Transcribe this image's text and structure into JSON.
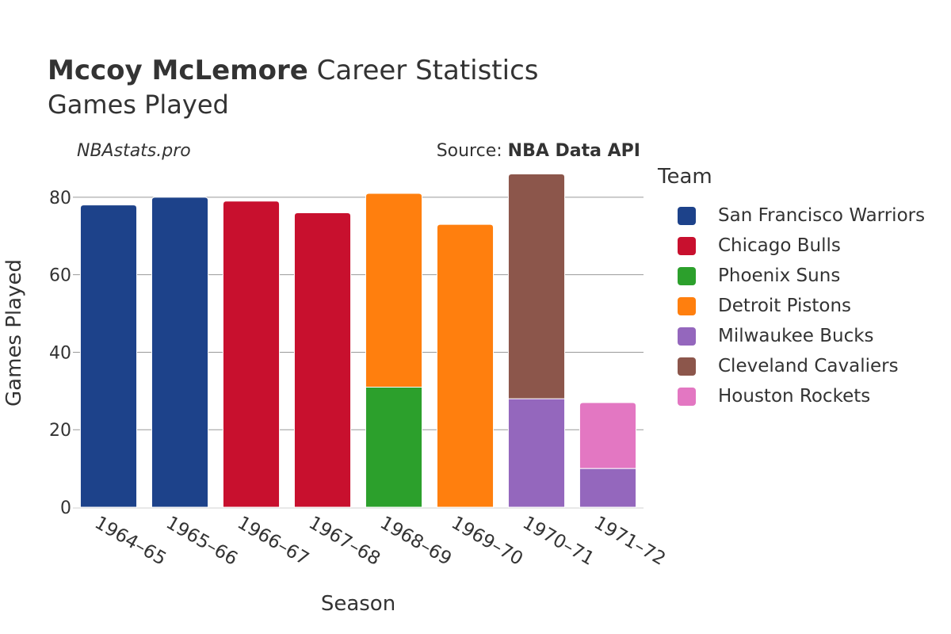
{
  "header": {
    "player_name": "Mccoy McLemore",
    "title_rest": " Career Statistics",
    "subtitle": "Games Played",
    "site": "NBAstats.pro",
    "source_prefix": "Source: ",
    "source_name": "NBA Data API"
  },
  "legend": {
    "title": "Team",
    "items": [
      {
        "label": "San Francisco Warriors",
        "color": "#1d428a"
      },
      {
        "label": "Chicago Bulls",
        "color": "#c8102e"
      },
      {
        "label": "Phoenix Suns",
        "color": "#2ca02c"
      },
      {
        "label": "Detroit Pistons",
        "color": "#ff7f0e"
      },
      {
        "label": "Milwaukee Bucks",
        "color": "#9467bd"
      },
      {
        "label": "Cleveland Cavaliers",
        "color": "#8c564b"
      },
      {
        "label": "Houston Rockets",
        "color": "#e377c2"
      }
    ]
  },
  "chart_data": {
    "type": "bar",
    "stacked": true,
    "title": "Mccoy McLemore Career Statistics",
    "subtitle": "Games Played",
    "xlabel": "Season",
    "ylabel": "Games Played",
    "ylim": [
      0,
      90
    ],
    "yticks": [
      0,
      20,
      40,
      60,
      80
    ],
    "grid": true,
    "legend_position": "right",
    "categories": [
      "1964–65",
      "1965–66",
      "1966–67",
      "1967–68",
      "1968–69",
      "1969–70",
      "1970–71",
      "1971–72"
    ],
    "series": [
      {
        "name": "San Francisco Warriors",
        "color": "#1d428a",
        "values": [
          78,
          80,
          0,
          0,
          0,
          0,
          0,
          0
        ]
      },
      {
        "name": "Chicago Bulls",
        "color": "#c8102e",
        "values": [
          0,
          0,
          79,
          76,
          0,
          0,
          0,
          0
        ]
      },
      {
        "name": "Phoenix Suns",
        "color": "#2ca02c",
        "values": [
          0,
          0,
          0,
          0,
          31,
          0,
          0,
          0
        ]
      },
      {
        "name": "Detroit Pistons",
        "color": "#ff7f0e",
        "values": [
          0,
          0,
          0,
          0,
          50,
          73,
          0,
          0
        ]
      },
      {
        "name": "Milwaukee Bucks",
        "color": "#9467bd",
        "values": [
          0,
          0,
          0,
          0,
          0,
          0,
          28,
          10
        ]
      },
      {
        "name": "Cleveland Cavaliers",
        "color": "#8c564b",
        "values": [
          0,
          0,
          0,
          0,
          0,
          0,
          58,
          0
        ]
      },
      {
        "name": "Houston Rockets",
        "color": "#e377c2",
        "values": [
          0,
          0,
          0,
          0,
          0,
          0,
          0,
          17
        ]
      }
    ]
  }
}
